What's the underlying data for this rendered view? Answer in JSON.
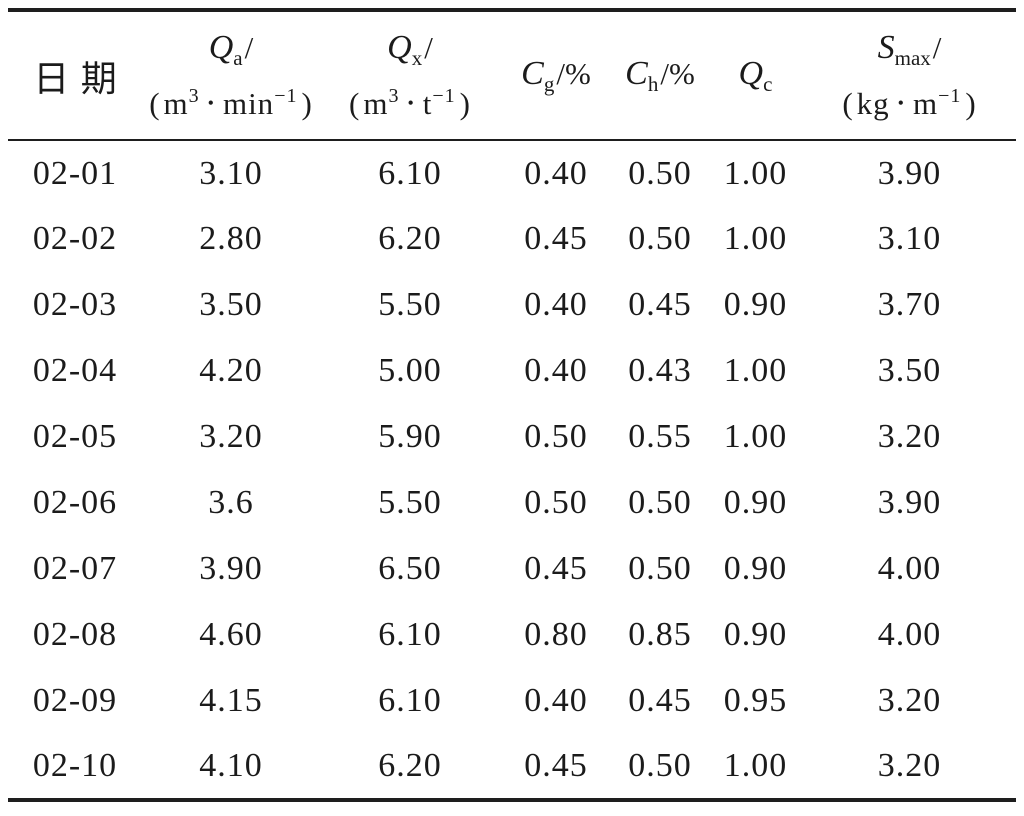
{
  "table": {
    "column_keys": [
      "date",
      "qa",
      "qx",
      "cg",
      "ch",
      "qc",
      "smax"
    ],
    "header": {
      "date": "日期",
      "qa": {
        "variable": "Q",
        "subscript": "a",
        "slash": "/",
        "unit": {
          "open": "(",
          "b1": "m",
          "sup1": "3",
          "dot": "•",
          "b2": "min",
          "sup2": "−1",
          "close": ")"
        }
      },
      "qx": {
        "variable": "Q",
        "subscript": "x",
        "slash": "/",
        "unit": {
          "open": "(",
          "b1": "m",
          "sup1": "3",
          "dot": "•",
          "b2": "t",
          "sup2": "−1",
          "close": ")"
        }
      },
      "cg": {
        "variable": "C",
        "subscript": "g",
        "slash": "/",
        "percent": "%"
      },
      "ch": {
        "variable": "C",
        "subscript": "h",
        "slash": "/",
        "percent": "%"
      },
      "qc": {
        "variable": "Q",
        "subscript": "c"
      },
      "smax": {
        "variable": "S",
        "subscript": "max",
        "slash": "/",
        "unit": {
          "open": "(",
          "b1": "kg",
          "sup1": "",
          "dot": "•",
          "b2": "m",
          "sup2": "−1",
          "close": ")"
        }
      }
    },
    "rows": [
      [
        "02-01",
        "3.10",
        "6.10",
        "0.40",
        "0.50",
        "1.00",
        "3.90"
      ],
      [
        "02-02",
        "2.80",
        "6.20",
        "0.45",
        "0.50",
        "1.00",
        "3.10"
      ],
      [
        "02-03",
        "3.50",
        "5.50",
        "0.40",
        "0.45",
        "0.90",
        "3.70"
      ],
      [
        "02-04",
        "4.20",
        "5.00",
        "0.40",
        "0.43",
        "1.00",
        "3.50"
      ],
      [
        "02-05",
        "3.20",
        "5.90",
        "0.50",
        "0.55",
        "1.00",
        "3.20"
      ],
      [
        "02-06",
        "3.6",
        "5.50",
        "0.50",
        "0.50",
        "0.90",
        "3.90"
      ],
      [
        "02-07",
        "3.90",
        "6.50",
        "0.45",
        "0.50",
        "0.90",
        "4.00"
      ],
      [
        "02-08",
        "4.60",
        "6.10",
        "0.80",
        "0.85",
        "0.90",
        "4.00"
      ],
      [
        "02-09",
        "4.15",
        "6.10",
        "0.40",
        "0.45",
        "0.95",
        "3.20"
      ],
      [
        "02-10",
        "4.10",
        "6.20",
        "0.45",
        "0.50",
        "1.00",
        "3.20"
      ]
    ]
  }
}
